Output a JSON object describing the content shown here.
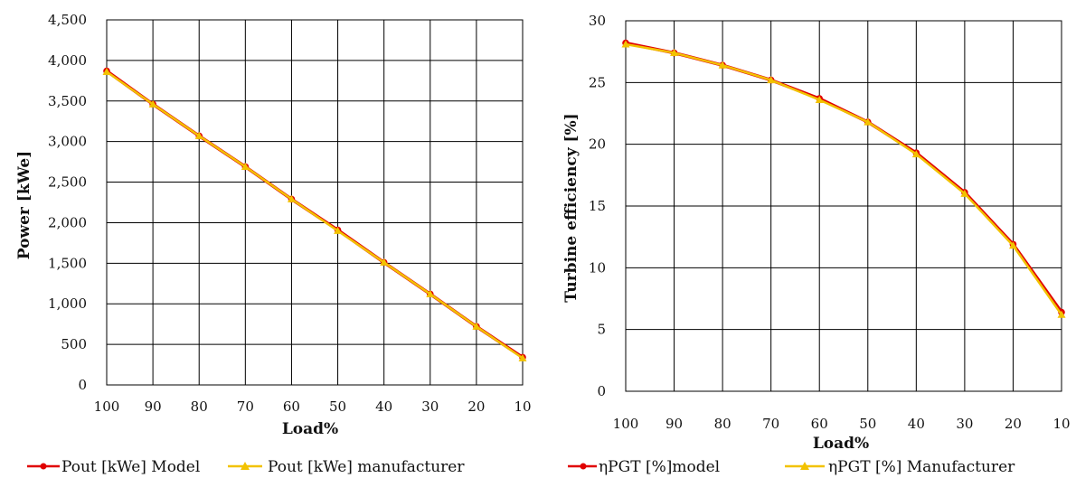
{
  "colors": {
    "model": "#e00000",
    "manufacturer": "#f2c200",
    "grid": "#000000"
  },
  "chart_data": [
    {
      "type": "line",
      "title": "",
      "xlabel": "Load%",
      "ylabel": "Power [kWe]",
      "x": [
        100,
        90,
        80,
        70,
        60,
        50,
        40,
        30,
        20,
        10
      ],
      "x_tick_labels": [
        "100",
        "90",
        "80",
        "70",
        "60",
        "50",
        "40",
        "30",
        "20",
        "10"
      ],
      "xlim": [
        100,
        10
      ],
      "ylim": [
        0,
        4500
      ],
      "y_ticks": [
        0,
        500,
        1000,
        1500,
        2000,
        2500,
        3000,
        3500,
        4000,
        4500
      ],
      "y_tick_labels": [
        "0",
        "500",
        "1,000",
        "1,500",
        "2,000",
        "2,500",
        "3,000",
        "3,500",
        "4,000",
        "4,500"
      ],
      "grid": true,
      "legend_position": "bottom",
      "series": [
        {
          "name": "Pout [kWe] Model",
          "marker": "circle",
          "color": "#e00000",
          "values": [
            3870,
            3460,
            3070,
            2690,
            2290,
            1910,
            1510,
            1120,
            720,
            340
          ]
        },
        {
          "name": "Pout [kWe] manufacturer",
          "marker": "triangle",
          "color": "#f2c200",
          "values": [
            3860,
            3460,
            3070,
            2690,
            2290,
            1900,
            1510,
            1120,
            720,
            330
          ]
        }
      ]
    },
    {
      "type": "line",
      "title": "",
      "xlabel": "Load%",
      "ylabel": "Turbine efficiency [%]",
      "x": [
        100,
        90,
        80,
        70,
        60,
        50,
        40,
        30,
        20,
        10
      ],
      "x_tick_labels": [
        "100",
        "90",
        "80",
        "70",
        "60",
        "50",
        "40",
        "30",
        "20",
        "10"
      ],
      "xlim": [
        100,
        10
      ],
      "ylim": [
        0,
        30
      ],
      "y_ticks": [
        0,
        5,
        10,
        15,
        20,
        25,
        30
      ],
      "y_tick_labels": [
        "0",
        "5",
        "10",
        "15",
        "20",
        "25",
        "30"
      ],
      "grid": true,
      "legend_position": "bottom",
      "series": [
        {
          "name": "ηPGT [%]model",
          "marker": "circle",
          "color": "#e00000",
          "values": [
            28.2,
            27.4,
            26.4,
            25.2,
            23.7,
            21.8,
            19.3,
            16.1,
            11.9,
            6.4
          ]
        },
        {
          "name": "ηPGT [%] Manufacturer",
          "marker": "triangle",
          "color": "#f2c200",
          "values": [
            28.1,
            27.4,
            26.4,
            25.2,
            23.6,
            21.8,
            19.2,
            16.0,
            11.8,
            6.2
          ]
        }
      ]
    }
  ]
}
